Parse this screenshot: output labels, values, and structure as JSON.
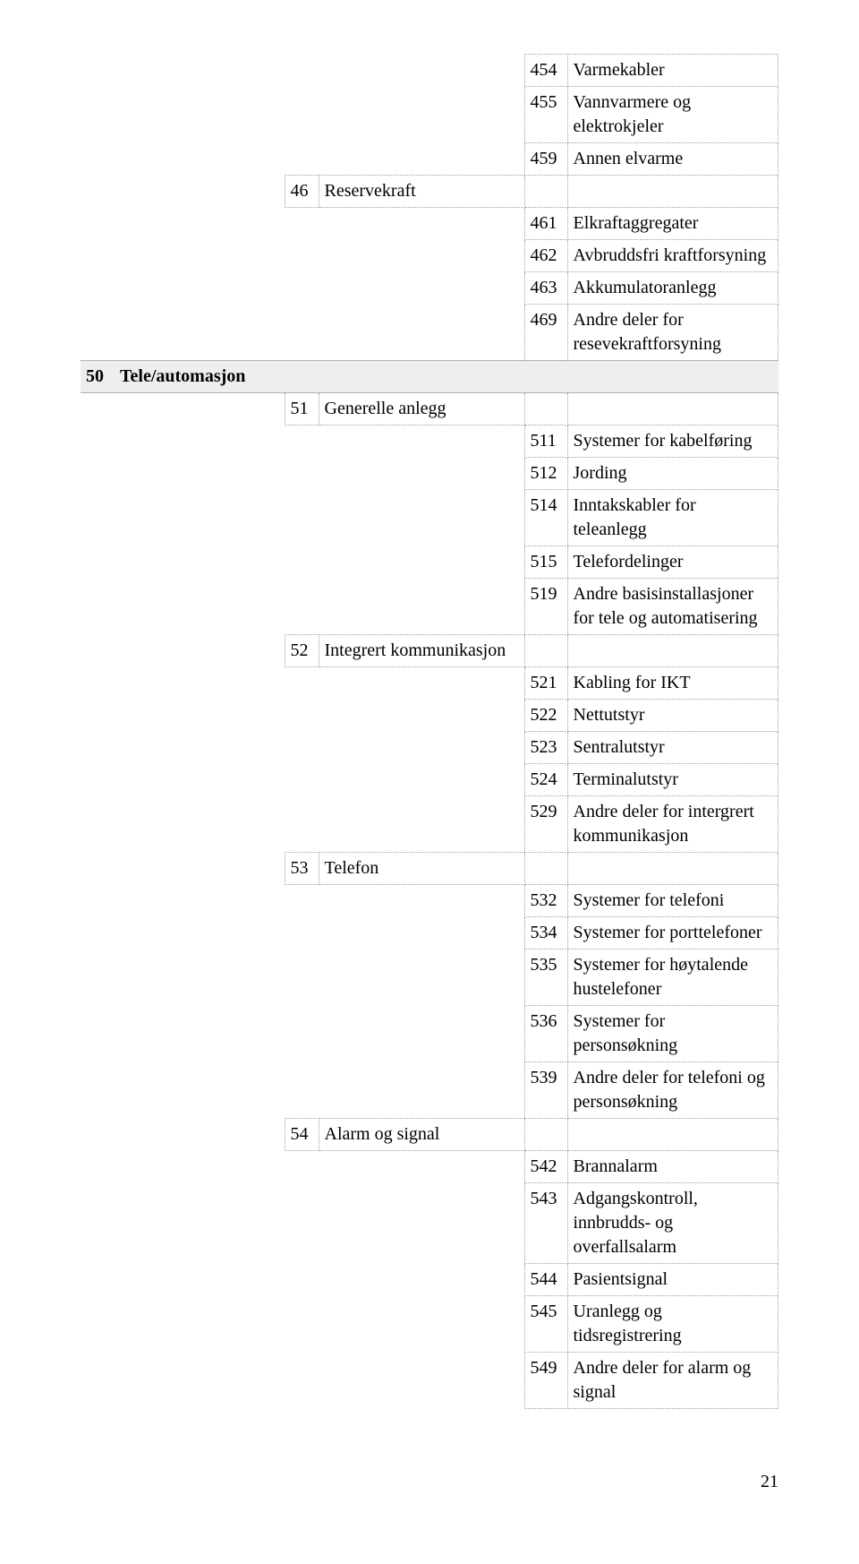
{
  "page_number": "21",
  "colors": {
    "text": "#000000",
    "background": "#ffffff",
    "section_bg": "#eeeeee",
    "dotted_border": "#a0a0a0",
    "hairline": "#b0b0b0"
  },
  "typography": {
    "font_family": "Garamond, Georgia, Times New Roman, serif",
    "base_font_size_pt": 12,
    "line_height": 1.35
  },
  "l3_top": [
    {
      "num": "454",
      "txt": "Varmekabler"
    },
    {
      "num": "455",
      "txt": "Vannvarmere og elektrokjeler"
    },
    {
      "num": "459",
      "txt": "Annen elvarme"
    }
  ],
  "l2_46": {
    "num": "46",
    "txt": "Reservekraft"
  },
  "l3_46": [
    {
      "num": "461",
      "txt": "Elkraftaggregater"
    },
    {
      "num": "462",
      "txt": "Avbruddsfri kraftforsyning"
    },
    {
      "num": "463",
      "txt": "Akkumulatoranlegg"
    },
    {
      "num": "469",
      "txt": "Andre deler for resevekraftforsyning"
    }
  ],
  "section_50": {
    "num": "50",
    "txt": "Tele/automasjon"
  },
  "l2_51": {
    "num": "51",
    "txt": "Generelle anlegg"
  },
  "l3_51": [
    {
      "num": "511",
      "txt": "Systemer for kabelføring"
    },
    {
      "num": "512",
      "txt": "Jording"
    },
    {
      "num": "514",
      "txt": "Inntakskabler for teleanlegg"
    },
    {
      "num": "515",
      "txt": "Telefordelinger"
    },
    {
      "num": "519",
      "txt": "Andre basisinstallasjoner for tele og automatisering"
    }
  ],
  "l2_52": {
    "num": "52",
    "txt": "Integrert kommunikasjon"
  },
  "l3_52": [
    {
      "num": "521",
      "txt": "Kabling for IKT"
    },
    {
      "num": "522",
      "txt": "Nettutstyr"
    },
    {
      "num": "523",
      "txt": "Sentralutstyr"
    },
    {
      "num": "524",
      "txt": "Terminalutstyr"
    },
    {
      "num": "529",
      "txt": "Andre deler for intergrert kommunikasjon"
    }
  ],
  "l2_53": {
    "num": "53",
    "txt": "Telefon"
  },
  "l3_53": [
    {
      "num": "532",
      "txt": "Systemer for telefoni"
    },
    {
      "num": "534",
      "txt": "Systemer for porttelefoner"
    },
    {
      "num": "535",
      "txt": "Systemer for høytalende hustelefoner"
    },
    {
      "num": "536",
      "txt": "Systemer for personsøkning"
    },
    {
      "num": "539",
      "txt": "Andre deler for telefoni og personsøkning"
    }
  ],
  "l2_54": {
    "num": "54",
    "txt": "Alarm og signal"
  },
  "l3_54": [
    {
      "num": "542",
      "txt": "Brannalarm"
    },
    {
      "num": "543",
      "txt": "Adgangskontroll, innbrudds- og overfallsalarm"
    },
    {
      "num": "544",
      "txt": "Pasientsignal"
    },
    {
      "num": "545",
      "txt": "Uranlegg og tidsregistrering"
    },
    {
      "num": "549",
      "txt": "Andre deler for alarm og signal"
    }
  ]
}
